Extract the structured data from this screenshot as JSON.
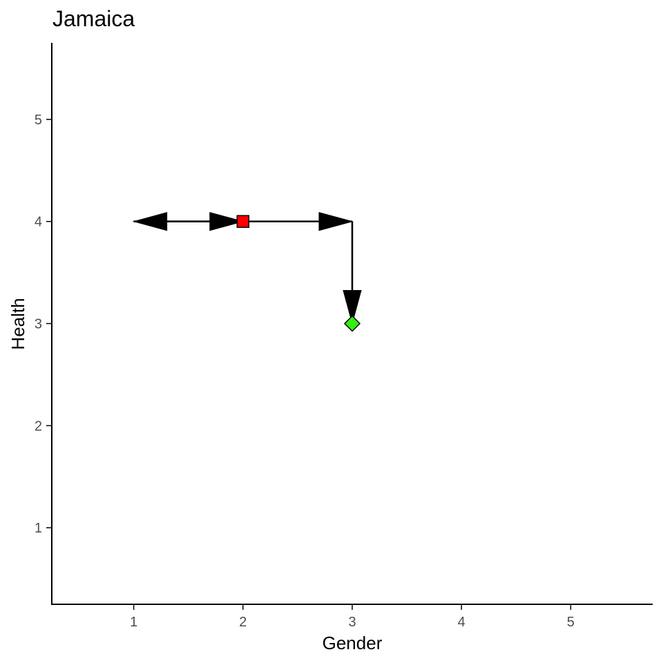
{
  "chart_data": {
    "type": "scatter",
    "title": "Jamaica",
    "xlabel": "Gender",
    "ylabel": "Health",
    "xlim": [
      0.25,
      5.75
    ],
    "ylim": [
      0.25,
      5.75
    ],
    "x_ticks": [
      1,
      2,
      3,
      4,
      5
    ],
    "y_ticks": [
      1,
      2,
      3,
      4,
      5
    ],
    "grid": false,
    "points": [
      {
        "x": 2,
        "y": 4,
        "shape": "square",
        "color": "#ff0000"
      },
      {
        "x": 3,
        "y": 3,
        "shape": "diamond",
        "color": "#33ee11"
      }
    ],
    "arrows": [
      {
        "from": [
          2,
          4
        ],
        "to": [
          1,
          4
        ]
      },
      {
        "from": [
          1,
          4
        ],
        "to": [
          2,
          4
        ]
      },
      {
        "from": [
          2,
          4
        ],
        "to": [
          3,
          4
        ]
      },
      {
        "from": [
          3,
          4
        ],
        "to": [
          3,
          3
        ]
      }
    ],
    "axis_color": "#000000",
    "tick_label_color": "#4d4d4d",
    "arrow_color": "#000000"
  }
}
